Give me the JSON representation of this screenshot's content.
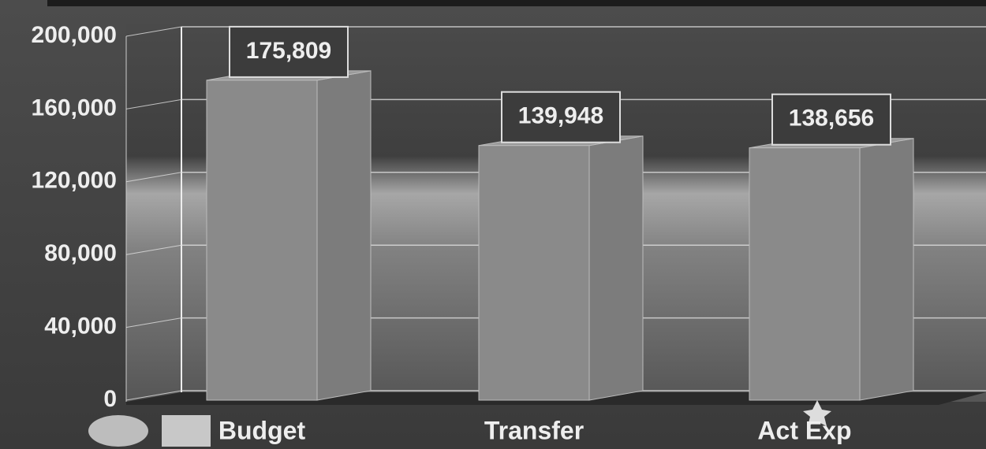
{
  "chart_data": {
    "type": "bar",
    "categories": [
      "Budget",
      "Transfer",
      "Act Exp"
    ],
    "values": [
      175809,
      139948,
      138656
    ],
    "value_labels": [
      "175,809",
      "139,948",
      "138,656"
    ],
    "color": "#8a8a8a",
    "ylim": [
      0,
      200000
    ],
    "yticks": [
      0,
      {
        "value": 40000,
        "label": "40,000"
      },
      {
        "value": 80000,
        "label": "80,000"
      },
      {
        "value": 120000,
        "label": "120,000"
      },
      {
        "value": 160000,
        "label": "160,000"
      },
      {
        "value": 200000,
        "label": "200,000"
      }
    ],
    "grid": true
  }
}
